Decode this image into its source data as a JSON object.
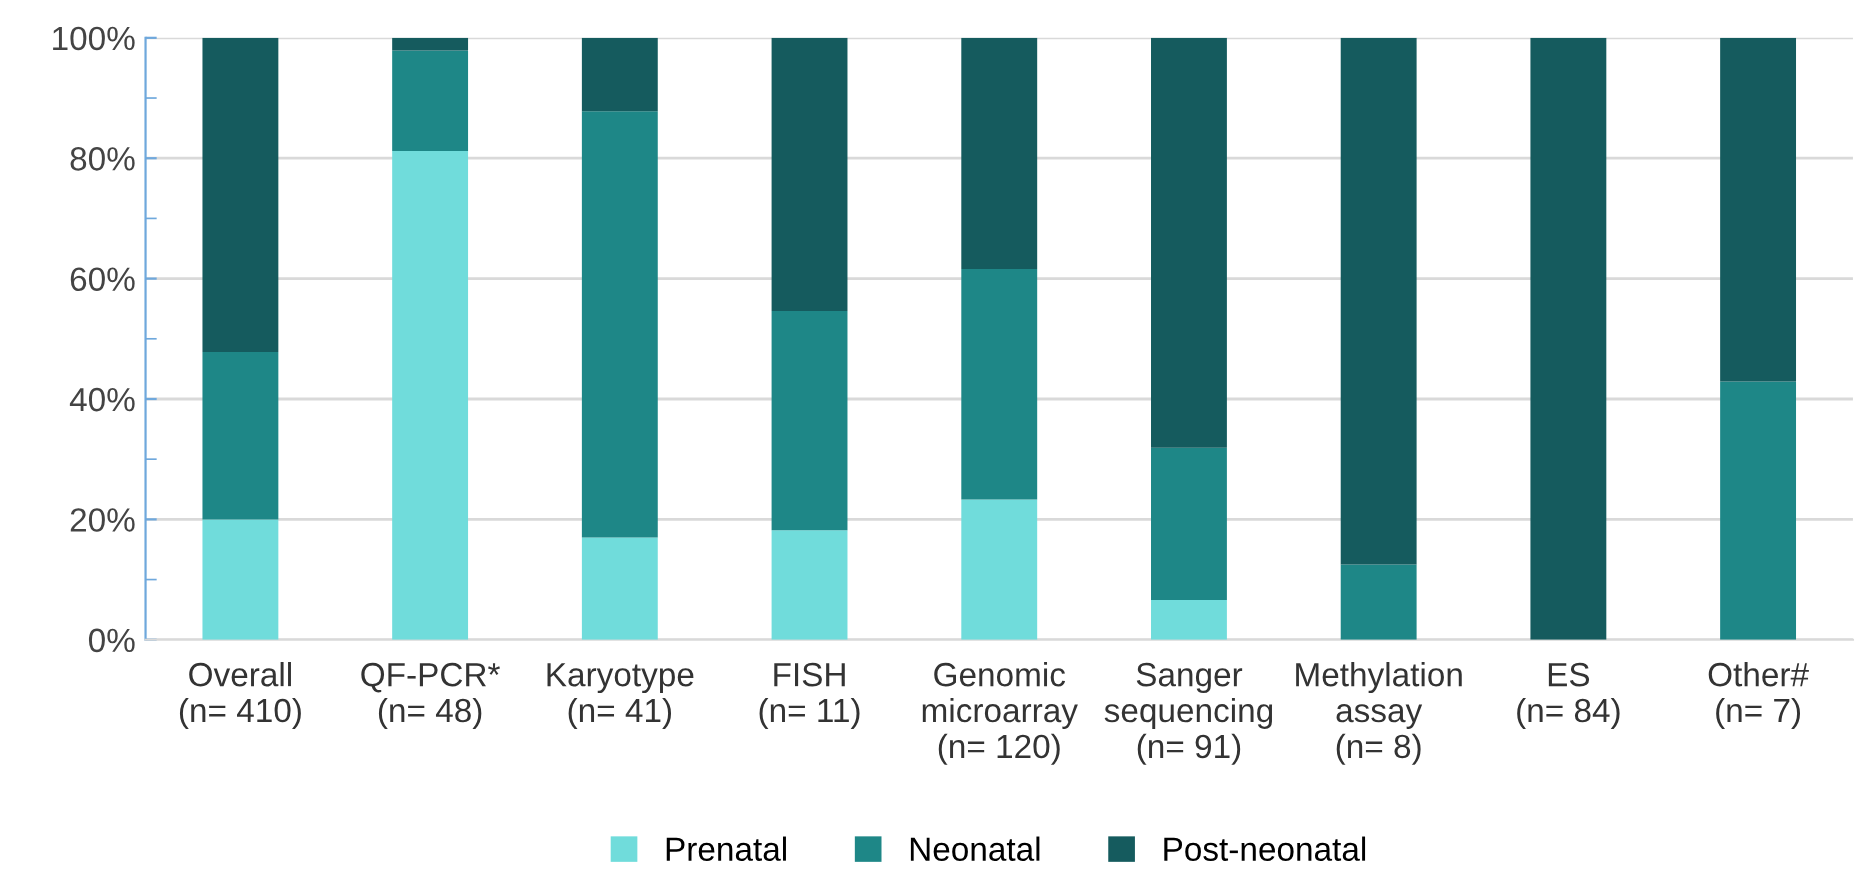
{
  "chart_data": {
    "type": "bar",
    "stacked": true,
    "categories": [
      "Overall\n(n= 410)",
      "QF-PCR*\n(n= 48)",
      "Karyotype\n(n= 41)",
      "FISH\n(n= 11)",
      "Genomic\nmicroarray\n(n= 120)",
      "Sanger\nsequencing\n(n= 91)",
      "Methylation\nassay\n(n= 8)",
      "ES\n(n= 84)",
      "Other#\n(n= 7)"
    ],
    "series": [
      {
        "name": "Prenatal",
        "color": "#70dcdb",
        "values": [
          20.0,
          81.2,
          17.0,
          18.2,
          23.3,
          6.6,
          0,
          0,
          0
        ]
      },
      {
        "name": "Neonatal",
        "color": "#1e8787",
        "values": [
          27.8,
          16.7,
          70.8,
          36.4,
          38.3,
          25.3,
          12.5,
          0,
          42.9
        ]
      },
      {
        "name": "Post-neonatal",
        "color": "#155b5e",
        "values": [
          52.2,
          2.1,
          12.2,
          45.4,
          38.4,
          68.1,
          87.5,
          100,
          57.1
        ]
      }
    ],
    "ylim": [
      0,
      100
    ],
    "yticks": [
      {
        "value": 0,
        "label": "0%"
      },
      {
        "value": 10,
        "label": null
      },
      {
        "value": 20,
        "label": "20%"
      },
      {
        "value": 30,
        "label": null
      },
      {
        "value": 40,
        "label": "40%"
      },
      {
        "value": 50,
        "label": null
      },
      {
        "value": 60,
        "label": "60%"
      },
      {
        "value": 70,
        "label": null
      },
      {
        "value": 80,
        "label": "80%"
      },
      {
        "value": 90,
        "label": null
      },
      {
        "value": 100,
        "label": "100%"
      }
    ],
    "grid": "y",
    "legend": "bottom"
  }
}
